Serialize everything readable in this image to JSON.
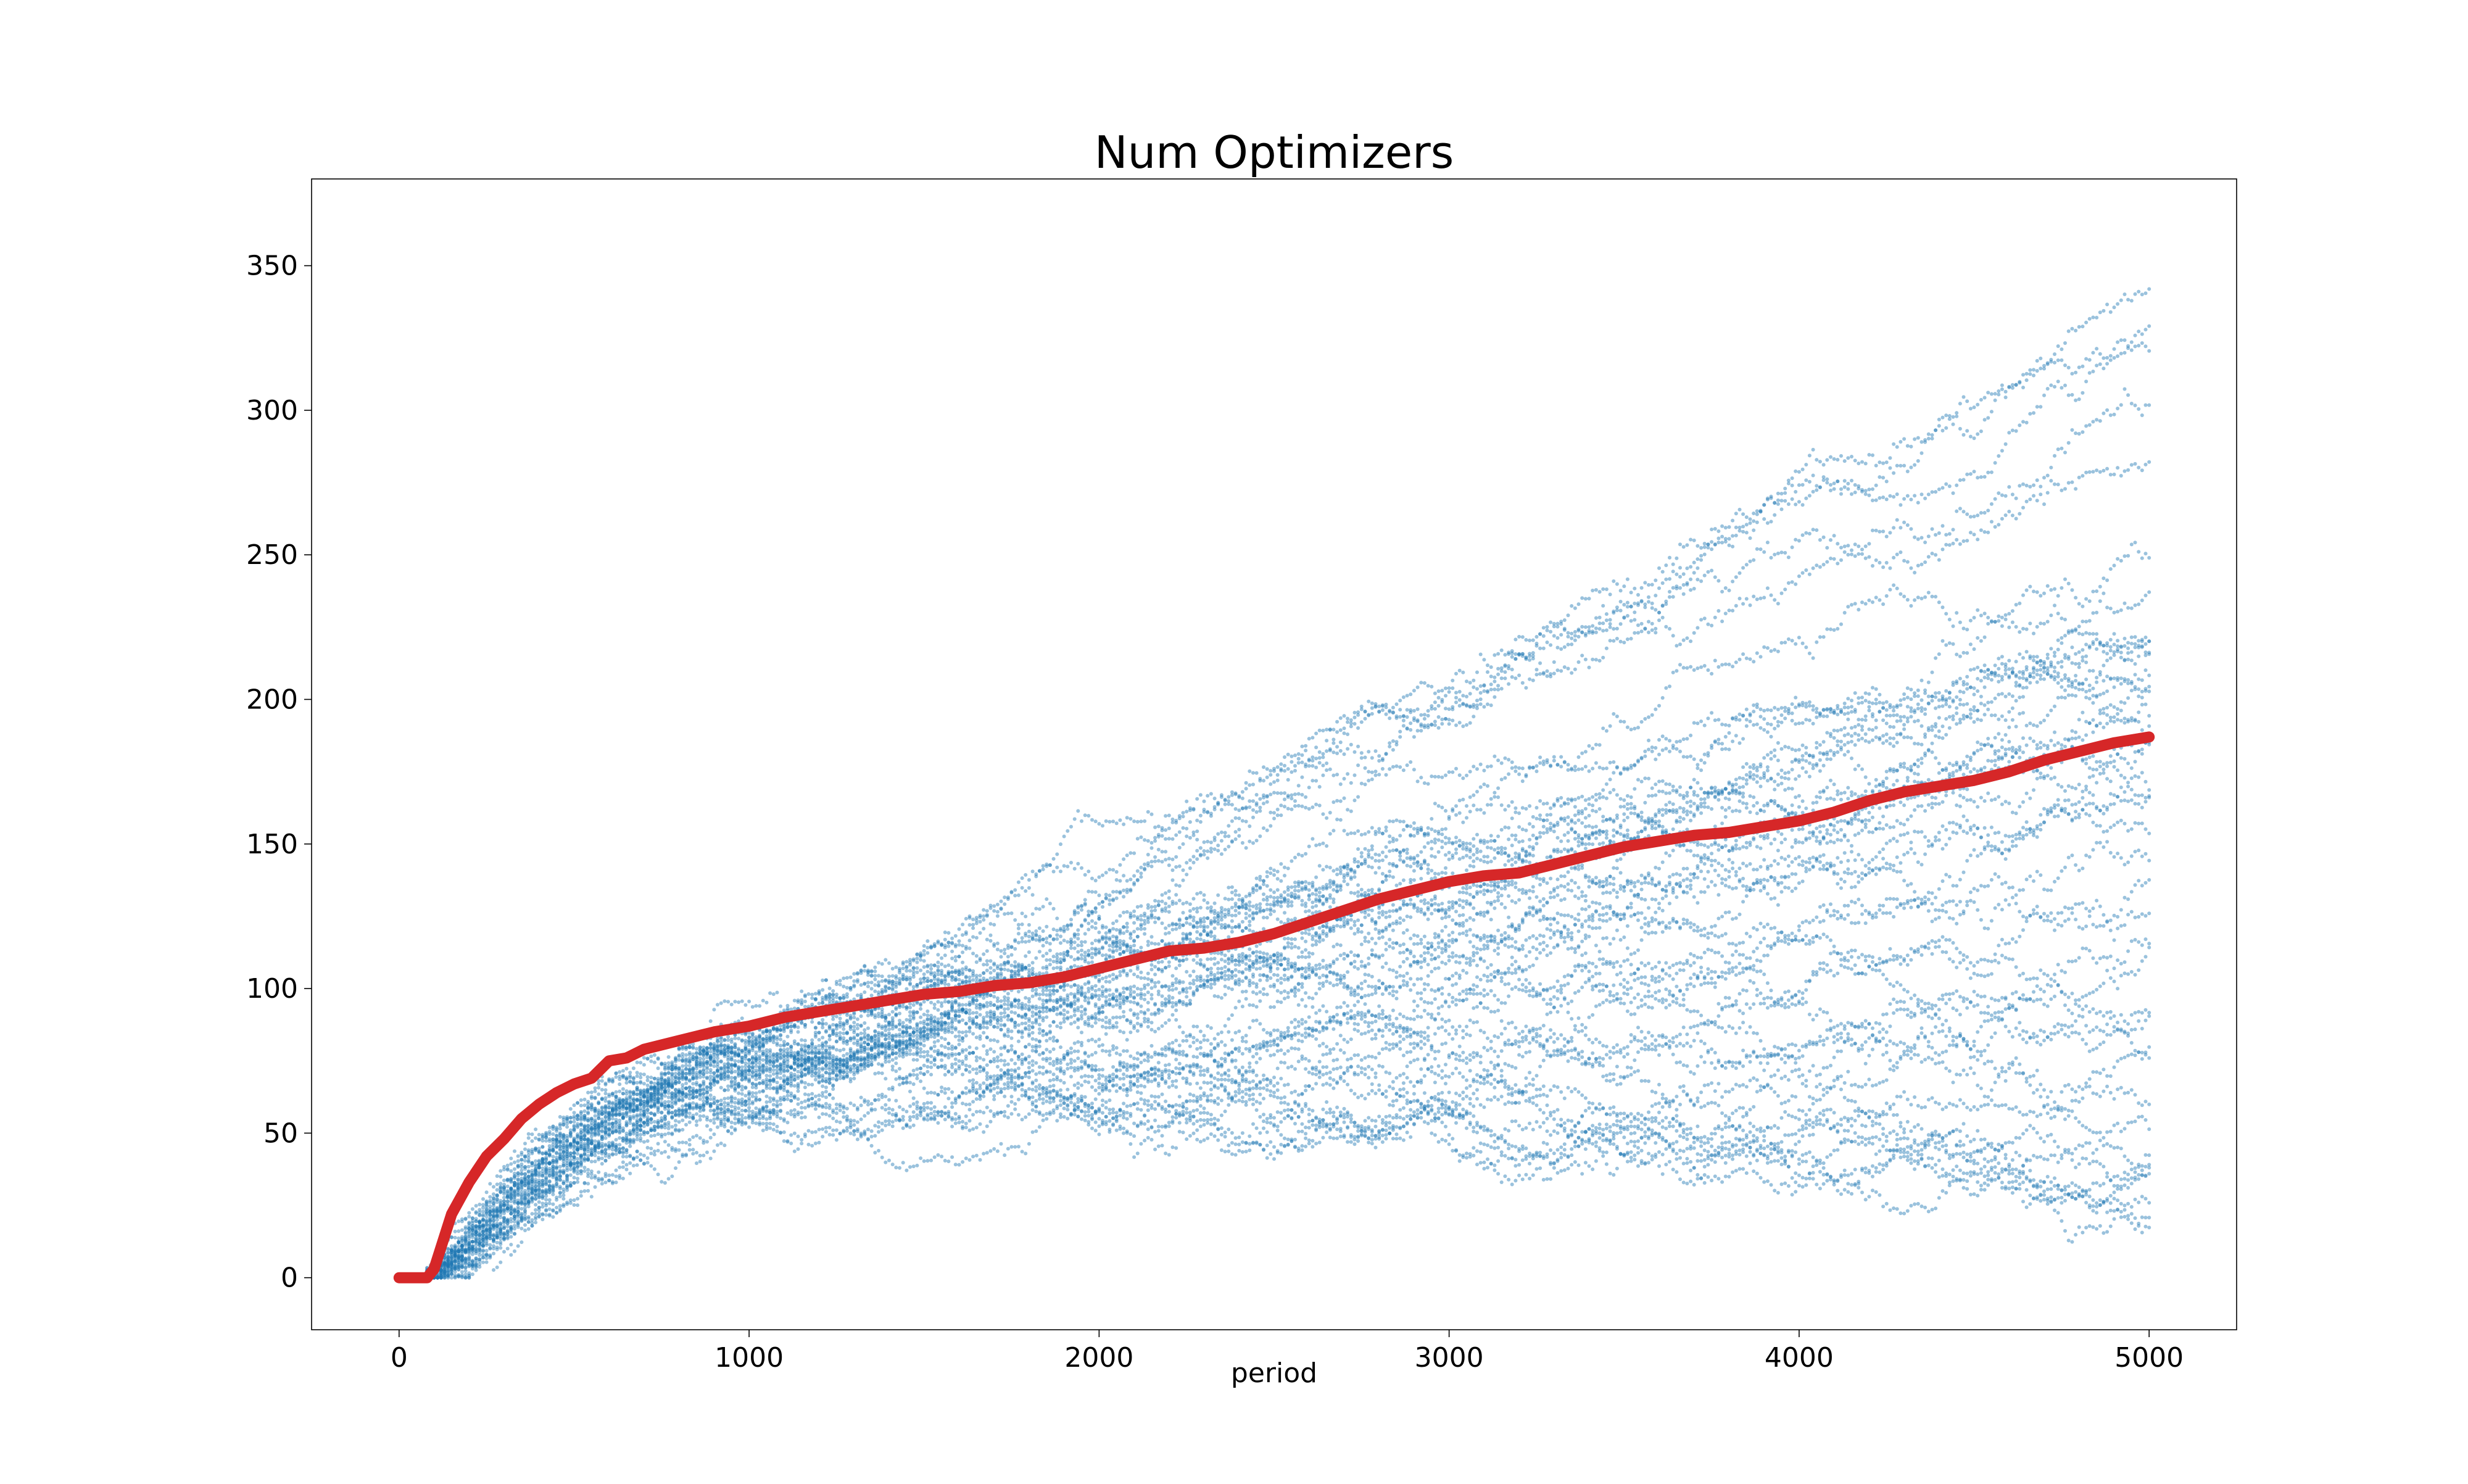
{
  "chart_data": {
    "type": "scatter",
    "title": "Num Optimizers",
    "xlabel": "period",
    "ylabel": "",
    "xlim": [
      -250,
      5250
    ],
    "ylim": [
      -18,
      380
    ],
    "xticks": [
      0,
      1000,
      2000,
      3000,
      4000,
      5000
    ],
    "yticks": [
      0,
      50,
      100,
      150,
      200,
      250,
      300,
      350
    ],
    "grid": false,
    "legend": "none",
    "colors": {
      "runs": "#1f77b4",
      "mean": "#d62728"
    },
    "series": [
      {
        "kind": "scatter-runs",
        "count": 40,
        "points_per_run_shape": {
          "x": [
            0,
            80,
            120,
            200,
            300,
            400,
            500,
            600,
            700,
            800,
            1000,
            1250,
            1500,
            1750,
            2000,
            2250,
            2500,
            2750,
            3000,
            3250,
            3500,
            3750,
            4000,
            4250,
            4500,
            4750,
            5000
          ],
          "final_values": [
            360,
            345,
            330,
            320,
            305,
            270,
            250,
            240,
            230,
            225,
            220,
            215,
            210,
            205,
            200,
            195,
            190,
            185,
            180,
            175,
            170,
            160,
            150,
            140,
            125,
            115,
            110,
            100,
            90,
            85,
            75,
            65,
            50,
            40,
            35,
            32,
            30,
            27,
            24,
            21
          ]
        }
      },
      {
        "kind": "mean-line",
        "x": [
          0,
          60,
          80,
          100,
          150,
          200,
          250,
          300,
          350,
          400,
          450,
          500,
          550,
          600,
          650,
          700,
          800,
          900,
          1000,
          1100,
          1200,
          1300,
          1400,
          1500,
          1600,
          1700,
          1800,
          1900,
          2000,
          2100,
          2200,
          2300,
          2400,
          2500,
          2600,
          2700,
          2800,
          2900,
          3000,
          3100,
          3200,
          3300,
          3400,
          3500,
          3600,
          3700,
          3800,
          3900,
          4000,
          4100,
          4200,
          4300,
          4400,
          4500,
          4600,
          4700,
          4800,
          4900,
          5000
        ],
        "y": [
          0,
          0,
          0,
          3,
          22,
          33,
          42,
          48,
          55,
          60,
          64,
          67,
          69,
          75,
          76,
          79,
          82,
          85,
          87,
          90,
          92,
          94,
          96,
          98,
          99,
          101,
          102,
          104,
          107,
          110,
          113,
          114,
          116,
          119,
          123,
          127,
          131,
          134,
          137,
          139,
          140,
          143,
          146,
          149,
          151,
          153,
          154,
          156,
          158,
          161,
          165,
          168,
          170,
          172,
          175,
          179,
          182,
          185,
          187
        ]
      }
    ]
  }
}
